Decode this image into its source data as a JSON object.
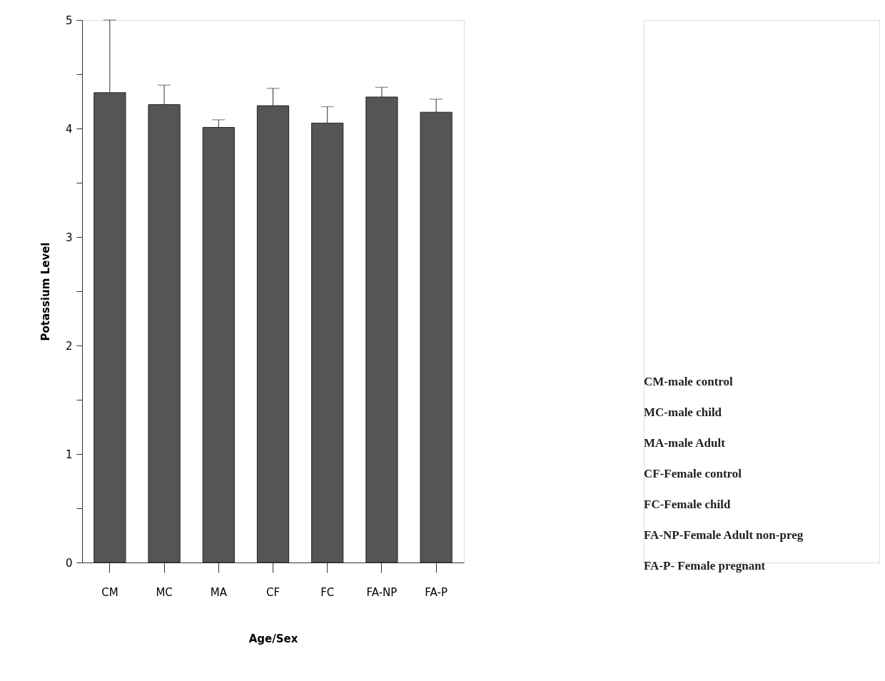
{
  "chart_data": {
    "type": "bar",
    "xlabel": "Age/Sex",
    "ylabel": "Potassium Level",
    "categories": [
      "CM",
      "MC",
      "MA",
      "CF",
      "FC",
      "FA-NP",
      "FA-P"
    ],
    "series": [
      {
        "color": "#555555",
        "values": [
          4.33,
          4.22,
          4.01,
          4.21,
          4.05,
          4.29,
          4.15
        ],
        "errors": [
          [
            4.33,
            5.0
          ],
          [
            4.22,
            4.4
          ],
          [
            4.01,
            4.08
          ],
          [
            4.21,
            4.37
          ],
          [
            4.05,
            4.2
          ],
          [
            4.29,
            4.38
          ],
          [
            4.15,
            4.27
          ]
        ]
      }
    ],
    "ylim": [
      0,
      5
    ],
    "yticks": [
      0,
      {
        "value": 0.5,
        "label": null
      },
      1,
      {
        "value": 1.5,
        "label": null
      },
      2,
      {
        "value": 2.5,
        "label": null
      },
      3,
      {
        "value": 3.5,
        "label": null
      },
      4,
      {
        "value": 4.5,
        "label": null
      },
      5
    ],
    "grid": false,
    "annotations": [
      "CM-male control",
      "MC-male child",
      "MA-male Adult",
      "CF-Female control",
      "FC-Female child",
      "FA-NP-Female Adult non-preg",
      "FA-P- Female pregnant"
    ]
  }
}
